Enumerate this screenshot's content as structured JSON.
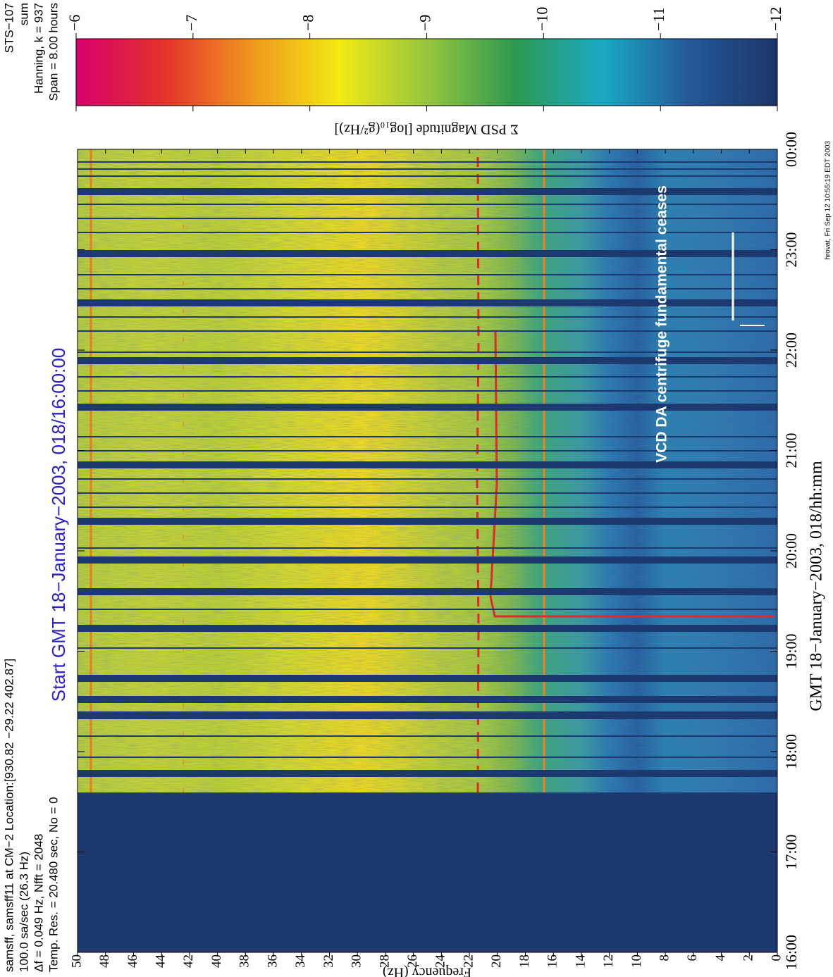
{
  "chart_data": {
    "type": "spectrogram",
    "header_left": [
      "samsff, samsff11 at CM−2 Location:[930.82 −29.22 402.87]",
      "100.0 sa/sec (26.3 Hz)",
      "Δf = 0.049 Hz, Nfft = 2048",
      "Temp. Res. = 20.480 sec, No = 0"
    ],
    "header_right": [
      "STS−107",
      "sum",
      "Hanning, k = 937",
      "Span = 8.00 hours"
    ],
    "title": "Start GMT 18−January−2003, 018/16:00:00",
    "title_color": "#2a22c8",
    "x_label": "GMT 18−January−2003, 018/hh:mm",
    "y_label": "Frequency (Hz)",
    "xlim": [
      16,
      24
    ],
    "xticks": [
      {
        "value": 16,
        "label": "16:00"
      },
      {
        "value": 17,
        "label": "17:00"
      },
      {
        "value": 18,
        "label": "18:00"
      },
      {
        "value": 19,
        "label": "19:00"
      },
      {
        "value": 20,
        "label": "20:00"
      },
      {
        "value": 21,
        "label": "21:00"
      },
      {
        "value": 22,
        "label": "22:00"
      },
      {
        "value": 23,
        "label": "23:00"
      },
      {
        "value": 24,
        "label": "00:00"
      }
    ],
    "ylim": [
      0,
      50
    ],
    "yticks": [
      0,
      2,
      4,
      6,
      8,
      10,
      12,
      14,
      16,
      18,
      20,
      22,
      24,
      26,
      28,
      30,
      32,
      34,
      36,
      38,
      40,
      42,
      44,
      46,
      48,
      50
    ],
    "annotation": "VCD DA centrifuge fundamental ceases",
    "colorbar": {
      "label": "Σ PSD Magnitude [log₁₀(g²/Hz)]",
      "lim": [
        -12,
        -6
      ],
      "ticks": [
        {
          "value": -12,
          "label": "−12"
        },
        {
          "value": -11,
          "label": "−11"
        },
        {
          "value": -10,
          "label": "−10"
        },
        {
          "value": -9,
          "label": "−9"
        },
        {
          "value": -8,
          "label": "−8"
        },
        {
          "value": -7,
          "label": "−7"
        },
        {
          "value": -6,
          "label": "−6"
        }
      ],
      "colors": [
        "#1c3567",
        "#24589a",
        "#19aac4",
        "#2d9950",
        "#96c63e",
        "#f3ea12",
        "#f0961e",
        "#e3322a",
        "#d8006e"
      ]
    },
    "footer": "hrovat, Fri Sep 12 10:55:19 EDT 2003"
  }
}
